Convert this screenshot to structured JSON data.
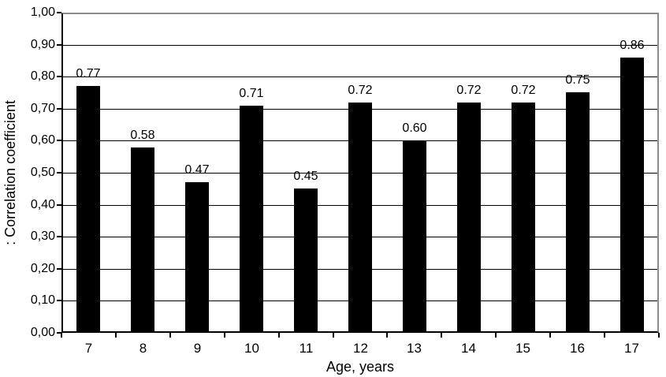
{
  "chart_data": {
    "type": "bar",
    "title": "",
    "xlabel": "Age, years",
    "ylabel": ": Correlation coefficient",
    "categories": [
      "7",
      "8",
      "9",
      "10",
      "11",
      "12",
      "13",
      "14",
      "15",
      "16",
      "17"
    ],
    "values": [
      0.77,
      0.58,
      0.47,
      0.71,
      0.45,
      0.72,
      0.6,
      0.72,
      0.72,
      0.75,
      0.86
    ],
    "data_labels": [
      "0.77",
      "0.58",
      "0.47",
      "0.71",
      "0.45",
      "0.72",
      "0.60",
      "0.72",
      "0.72",
      "0.75",
      "0.86"
    ],
    "ylim": [
      0,
      1
    ],
    "ytick_step": 0.1,
    "ytick_labels": [
      "0,00",
      "0,10",
      "0,20",
      "0,30",
      "0,40",
      "0,50",
      "0,60",
      "0,70",
      "0,80",
      "0,90",
      "1,00"
    ],
    "grid": true,
    "legend": null,
    "colors": {
      "bar": "#000000",
      "gridline": "#000000",
      "axis": "#000000",
      "plot_border_top_right": "#8c8c8c",
      "background": "#ffffff",
      "text": "#000000"
    }
  }
}
